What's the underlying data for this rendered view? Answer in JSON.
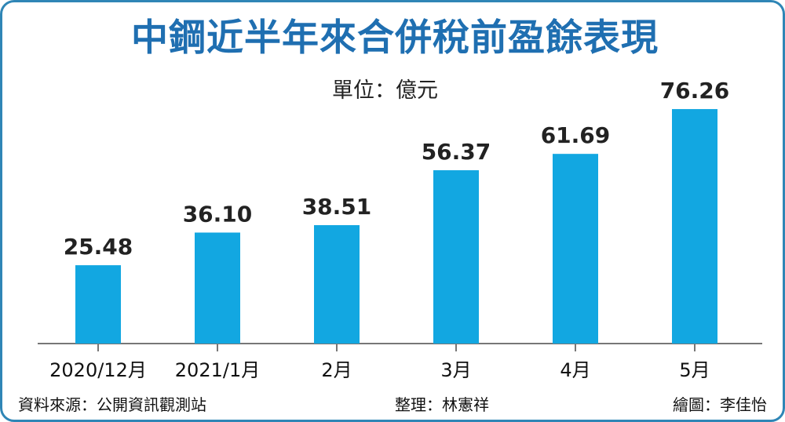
{
  "title": "中鋼近半年來合併稅前盈餘表現",
  "unit_label": "單位：億元",
  "chart_data": {
    "type": "bar",
    "title": "中鋼近半年來合併稅前盈餘表現",
    "ylabel": "",
    "xlabel": "",
    "categories": [
      "2020/12月",
      "2021/1月",
      "2月",
      "3月",
      "4月",
      "5月"
    ],
    "values": [
      25.48,
      36.1,
      38.51,
      56.37,
      61.69,
      76.26
    ],
    "value_labels": [
      "25.48",
      "36.10",
      "38.51",
      "56.37",
      "61.69",
      "76.26"
    ],
    "ylim": [
      0,
      80
    ],
    "grid": false,
    "legend": "none"
  },
  "colors": {
    "bar": "#12a7e1",
    "title": "#1f6fb1",
    "axis": "#777777",
    "value_text": "#222222"
  },
  "footer": {
    "source": "資料來源：公開資訊觀測站",
    "editor": "整理：林憲祥",
    "drawn": "繪圖：李佳怡"
  }
}
